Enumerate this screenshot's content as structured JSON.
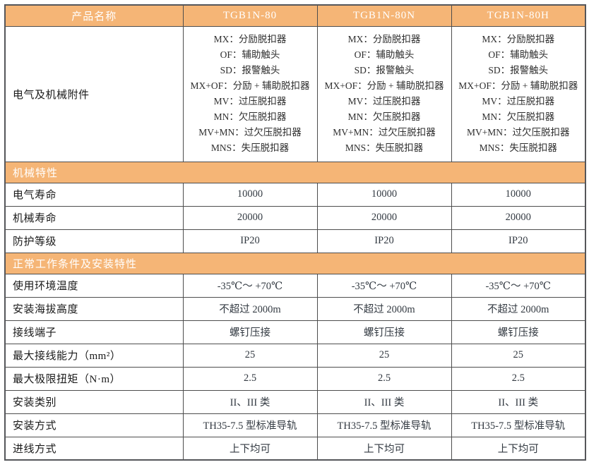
{
  "colors": {
    "band_orange": "#F5B576",
    "border_dark": "#4D4D4D",
    "band_text": "#FFFFFF",
    "label_text": "#1A1A1A",
    "value_text": "#333A42"
  },
  "header": {
    "product_name_label": "产品名称",
    "columns": [
      "TGB1N-80",
      "TGB1N-80N",
      "TGB1N-80H"
    ]
  },
  "accessories": {
    "label": "电气及机械附件",
    "items": [
      "MX：分励脱扣器",
      "OF：辅助触头",
      "SD：报警触头",
      "MX+OF：分励 + 辅助脱扣器",
      "MV：过压脱扣器",
      "MN：欠压脱扣器",
      "MV+MN：过欠压脱扣器",
      "MNS：失压脱扣器"
    ]
  },
  "sections": [
    {
      "title": "机械特性",
      "rows": [
        {
          "label": "电气寿命",
          "values": [
            "10000",
            "10000",
            "10000"
          ]
        },
        {
          "label": "机械寿命",
          "values": [
            "20000",
            "20000",
            "20000"
          ]
        },
        {
          "label": "防护等级",
          "values": [
            "IP20",
            "IP20",
            "IP20"
          ]
        }
      ]
    },
    {
      "title": "正常工作条件及安装特性",
      "rows": [
        {
          "label": "使用环境温度",
          "values": [
            "-35℃～ +70℃",
            "-35℃～ +70℃",
            "-35℃～ +70℃"
          ]
        },
        {
          "label": "安装海拔高度",
          "values": [
            "不超过 2000m",
            "不超过 2000m",
            "不超过 2000m"
          ]
        },
        {
          "label": "接线端子",
          "values": [
            "螺钉压接",
            "螺钉压接",
            "螺钉压接"
          ]
        },
        {
          "label": "最大接线能力（mm²）",
          "values": [
            "25",
            "25",
            "25"
          ]
        },
        {
          "label": "最大极限扭矩（N·m）",
          "values": [
            "2.5",
            "2.5",
            "2.5"
          ]
        },
        {
          "label": "安装类别",
          "values": [
            "II、III 类",
            "II、III 类",
            "II、III 类"
          ]
        },
        {
          "label": "安装方式",
          "values": [
            "TH35-7.5 型标准导轨",
            "TH35-7.5 型标准导轨",
            "TH35-7.5 型标准导轨"
          ]
        },
        {
          "label": "进线方式",
          "values": [
            "上下均可",
            "上下均可",
            "上下均可"
          ]
        }
      ]
    }
  ]
}
